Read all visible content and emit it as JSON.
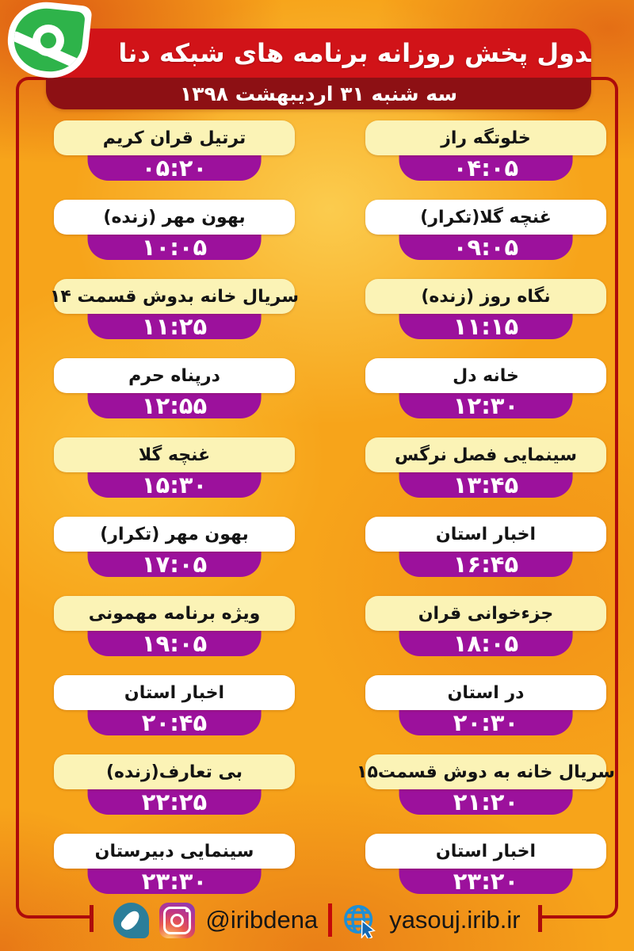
{
  "header": {
    "title": "جدول پخش روزانه برنامه های شبکه دنا",
    "date": "سه شنبه ۳۱ اردیبهشت ۱۳۹۸",
    "logo": "irib-dena-network-logo"
  },
  "schedule": {
    "right_column": [
      {
        "program": "خلوتگه راز",
        "time": "۰۴:۰۵"
      },
      {
        "program": "غنچه گلا(تکرار)",
        "time": "۰۹:۰۵"
      },
      {
        "program": "نگاه روز (زنده)",
        "time": "۱۱:۱۵"
      },
      {
        "program": "خانه دل",
        "time": "۱۲:۳۰"
      },
      {
        "program": "سینمایی فصل نرگس",
        "time": "۱۳:۴۵"
      },
      {
        "program": "اخبار استان",
        "time": "۱۶:۴۵"
      },
      {
        "program": "جزءخوانی قران",
        "time": "۱۸:۰۵"
      },
      {
        "program": "در استان",
        "time": "۲۰:۳۰"
      },
      {
        "program": "سریال خانه به دوش قسمت۱۵",
        "time": "۲۱:۲۰"
      },
      {
        "program": "اخبار استان",
        "time": "۲۳:۲۰"
      }
    ],
    "left_column": [
      {
        "program": "ترتیل قران کریم",
        "time": "۰۵:۲۰"
      },
      {
        "program": "بهون مهر (زنده)",
        "time": "۱۰:۰۵"
      },
      {
        "program": "سریال خانه بدوش قسمت ۱۴",
        "time": "۱۱:۲۵"
      },
      {
        "program": "درپناه حرم",
        "time": "۱۲:۵۵"
      },
      {
        "program": "غنچه گلا",
        "time": "۱۵:۳۰"
      },
      {
        "program": "بهون مهر (تکرار)",
        "time": "۱۷:۰۵"
      },
      {
        "program": "ویژه برنامه مهمونی",
        "time": "۱۹:۰۵"
      },
      {
        "program": "اخبار استان",
        "time": "۲۰:۴۵"
      },
      {
        "program": "بی تعارف(زنده)",
        "time": "۲۲:۲۵"
      },
      {
        "program": "سینمایی دبیرستان",
        "time": "۲۳:۳۰"
      }
    ]
  },
  "footer": {
    "instagram_handle": "@iribdena",
    "website": "yasouj.irib.ir",
    "icons": [
      "soroush-messenger-icon",
      "instagram-icon",
      "globe-cursor-icon"
    ]
  },
  "colors": {
    "header_red": "#d11318",
    "date_maroon": "#8d1014",
    "frame_red": "#ad0b0b",
    "label_cream": "#fbf3b6",
    "label_white": "#ffffff",
    "time_purple": "#9c119c",
    "logo_green": "#2eb34a",
    "bg_orange": "#f7a41a"
  }
}
